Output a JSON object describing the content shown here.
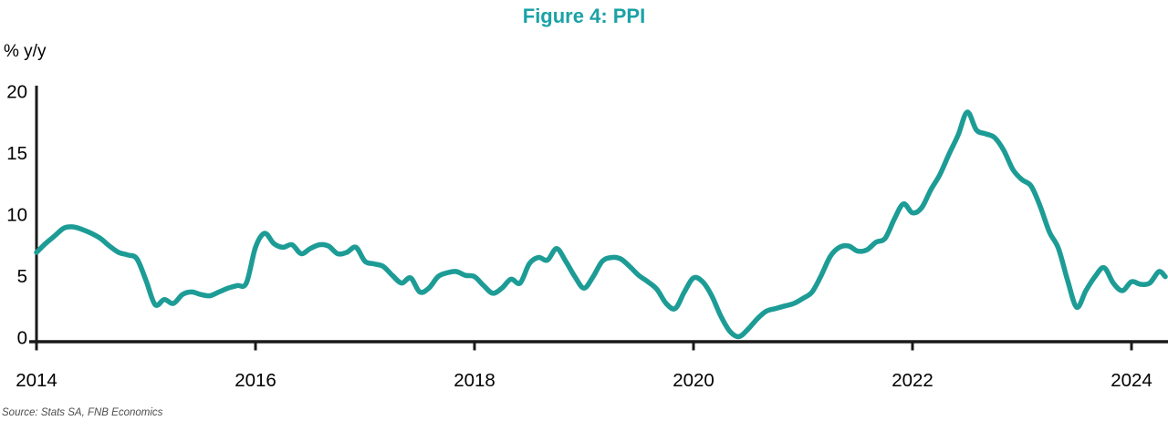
{
  "figure": {
    "title": "Figure 4: PPI",
    "unit_label": "% y/y",
    "source": "Source: Stats SA, FNB Economics"
  },
  "colors": {
    "accent_title": "#1ba2a6",
    "line": "#1d9c96",
    "axis": "#1a1a1a",
    "tick_text": "#000000",
    "source_text": "#4d4d4d"
  },
  "chart_data": {
    "type": "line",
    "title": "Figure 4: PPI",
    "ylabel": "% y/y",
    "xlabel": "",
    "grid": false,
    "legend": false,
    "ylim": [
      0,
      20
    ],
    "yticks": [
      0,
      5,
      10,
      15,
      20
    ],
    "xticks_years": [
      2014,
      2016,
      2018,
      2020,
      2022,
      2024
    ],
    "x": {
      "start": "2014-01",
      "frequency": "monthly",
      "end": "2024-05"
    },
    "series": [
      {
        "name": "PPI % y/y",
        "values": [
          7.0,
          7.7,
          8.3,
          8.9,
          9.0,
          8.8,
          8.5,
          8.1,
          7.5,
          7.0,
          6.8,
          6.5,
          4.8,
          2.9,
          3.3,
          3.0,
          3.7,
          3.9,
          3.7,
          3.6,
          3.9,
          4.2,
          4.4,
          4.6,
          7.4,
          8.5,
          7.7,
          7.4,
          7.6,
          6.9,
          7.3,
          7.6,
          7.5,
          6.9,
          7.0,
          7.4,
          6.3,
          6.1,
          5.9,
          5.2,
          4.6,
          5.0,
          3.9,
          4.2,
          5.1,
          5.4,
          5.5,
          5.2,
          5.1,
          4.4,
          3.8,
          4.2,
          4.9,
          4.6,
          6.1,
          6.6,
          6.4,
          7.3,
          6.3,
          5.1,
          4.2,
          5.1,
          6.3,
          6.6,
          6.5,
          5.9,
          5.2,
          4.7,
          4.1,
          3.0,
          2.6,
          3.9,
          5.0,
          4.7,
          3.6,
          2.0,
          0.8,
          0.4,
          1.0,
          1.8,
          2.4,
          2.6,
          2.8,
          3.0,
          3.4,
          3.9,
          5.2,
          6.7,
          7.4,
          7.5,
          7.1,
          7.2,
          7.8,
          8.1,
          9.6,
          10.8,
          10.1,
          10.5,
          11.9,
          13.1,
          14.7,
          16.2,
          18.0,
          16.6,
          16.3,
          16.0,
          15.0,
          13.5,
          12.7,
          12.2,
          10.6,
          8.6,
          7.3,
          4.8,
          2.7,
          4.0,
          5.1,
          5.8,
          4.6,
          4.0,
          4.7,
          4.5,
          4.6,
          5.5,
          5.1
        ]
      }
    ]
  }
}
